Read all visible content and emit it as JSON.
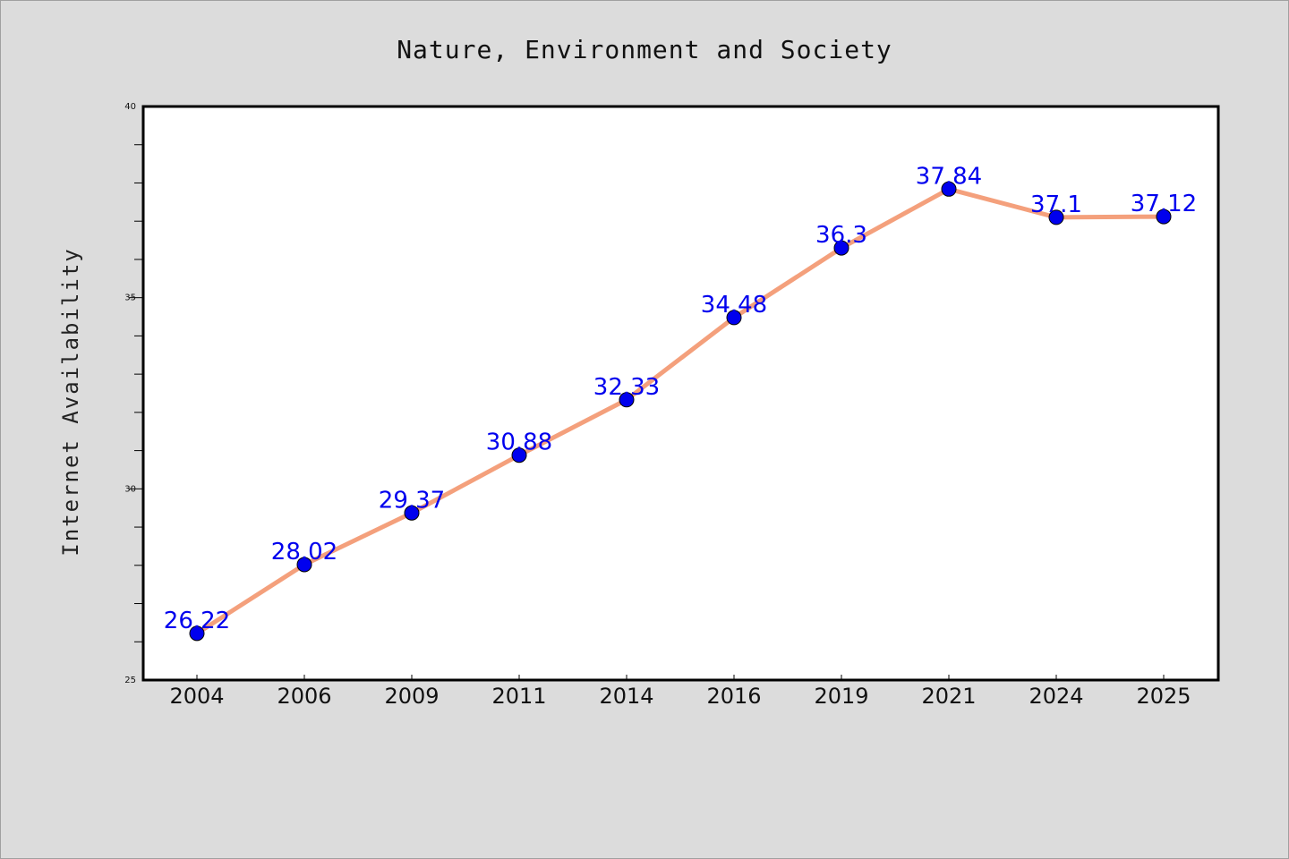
{
  "chart_data": {
    "type": "line",
    "title": "Nature, Environment and Society",
    "xlabel": "",
    "ylabel": "Internet Availability",
    "categories": [
      "2004",
      "2006",
      "2009",
      "2011",
      "2014",
      "2016",
      "2019",
      "2021",
      "2024",
      "2025"
    ],
    "series": [
      {
        "values": [
          26.22,
          28.02,
          29.37,
          30.88,
          32.33,
          34.48,
          36.3,
          37.84,
          37.1,
          37.12
        ],
        "data_labels": [
          "26.22",
          "28.02",
          "29.37",
          "30.88",
          "32.33",
          "34.48",
          "36.3",
          "37.84",
          "37.1",
          "37.12"
        ],
        "line_color": "#f4a07c",
        "marker_color": "#0000ee",
        "label_color": "#0000ee"
      }
    ],
    "ylim": [
      25,
      40
    ],
    "yticks": [
      {
        "value": 25,
        "label": "25"
      },
      {
        "value": 30,
        "label": "30"
      },
      {
        "value": 35,
        "label": "35"
      },
      {
        "value": 40,
        "label": "40"
      }
    ],
    "grid": false,
    "legend": "none",
    "colors": {
      "background": "#dcdcdc",
      "plot_background": "#ffffff",
      "axis": "#000000"
    }
  }
}
